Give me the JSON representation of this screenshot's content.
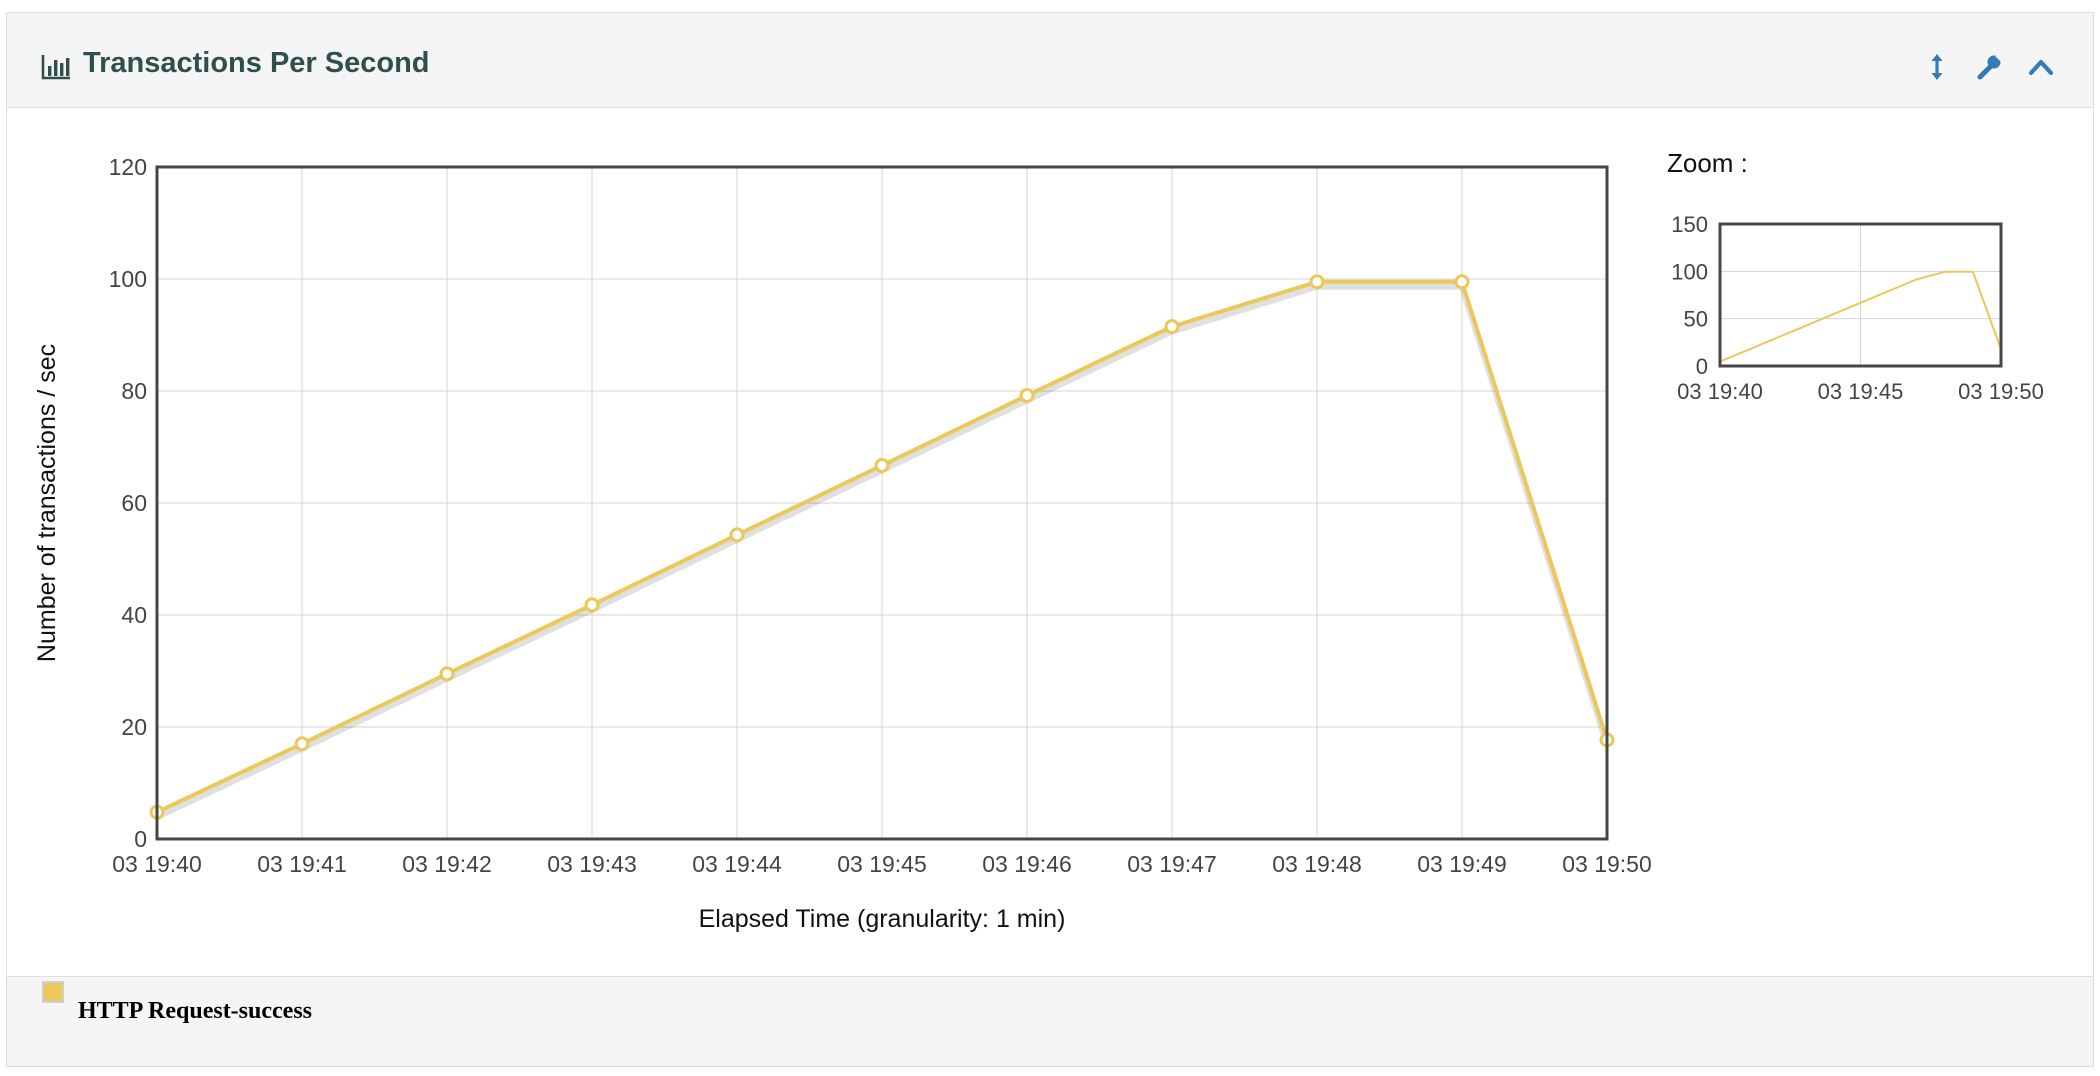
{
  "panel": {
    "title": "Transactions Per Second",
    "title_icon": "bar-chart-icon",
    "tools": [
      {
        "name": "resize-icon",
        "label": "resize"
      },
      {
        "name": "wrench-icon",
        "label": "settings"
      },
      {
        "name": "chevron-up-icon",
        "label": "collapse"
      }
    ],
    "accent_color": "#337ab7"
  },
  "chart_data": {
    "type": "line",
    "title": "",
    "xlabel": "Elapsed Time (granularity: 1 min)",
    "ylabel": "Number of transactions / sec",
    "x": [
      "03 19:40",
      "03 19:41",
      "03 19:42",
      "03 19:43",
      "03 19:44",
      "03 19:45",
      "03 19:46",
      "03 19:47",
      "03 19:48",
      "03 19:49",
      "03 19:50"
    ],
    "ylim": [
      0,
      120
    ],
    "yticks": [
      0,
      20,
      40,
      60,
      80,
      100,
      120
    ],
    "grid": true,
    "series": [
      {
        "name": "HTTP Request-success",
        "color": "#ebc85a",
        "values": [
          4.8,
          17,
          29.5,
          41.8,
          54.3,
          66.7,
          79.2,
          91.5,
          99.5,
          99.5,
          17.7
        ]
      }
    ],
    "legend_position": "bottom-left"
  },
  "zoom": {
    "label": "Zoom :",
    "ylim": [
      0,
      150
    ],
    "yticks": [
      0,
      50,
      100,
      150
    ],
    "xticks": [
      "03 19:40",
      "03 19:45",
      "03 19:50"
    ]
  }
}
